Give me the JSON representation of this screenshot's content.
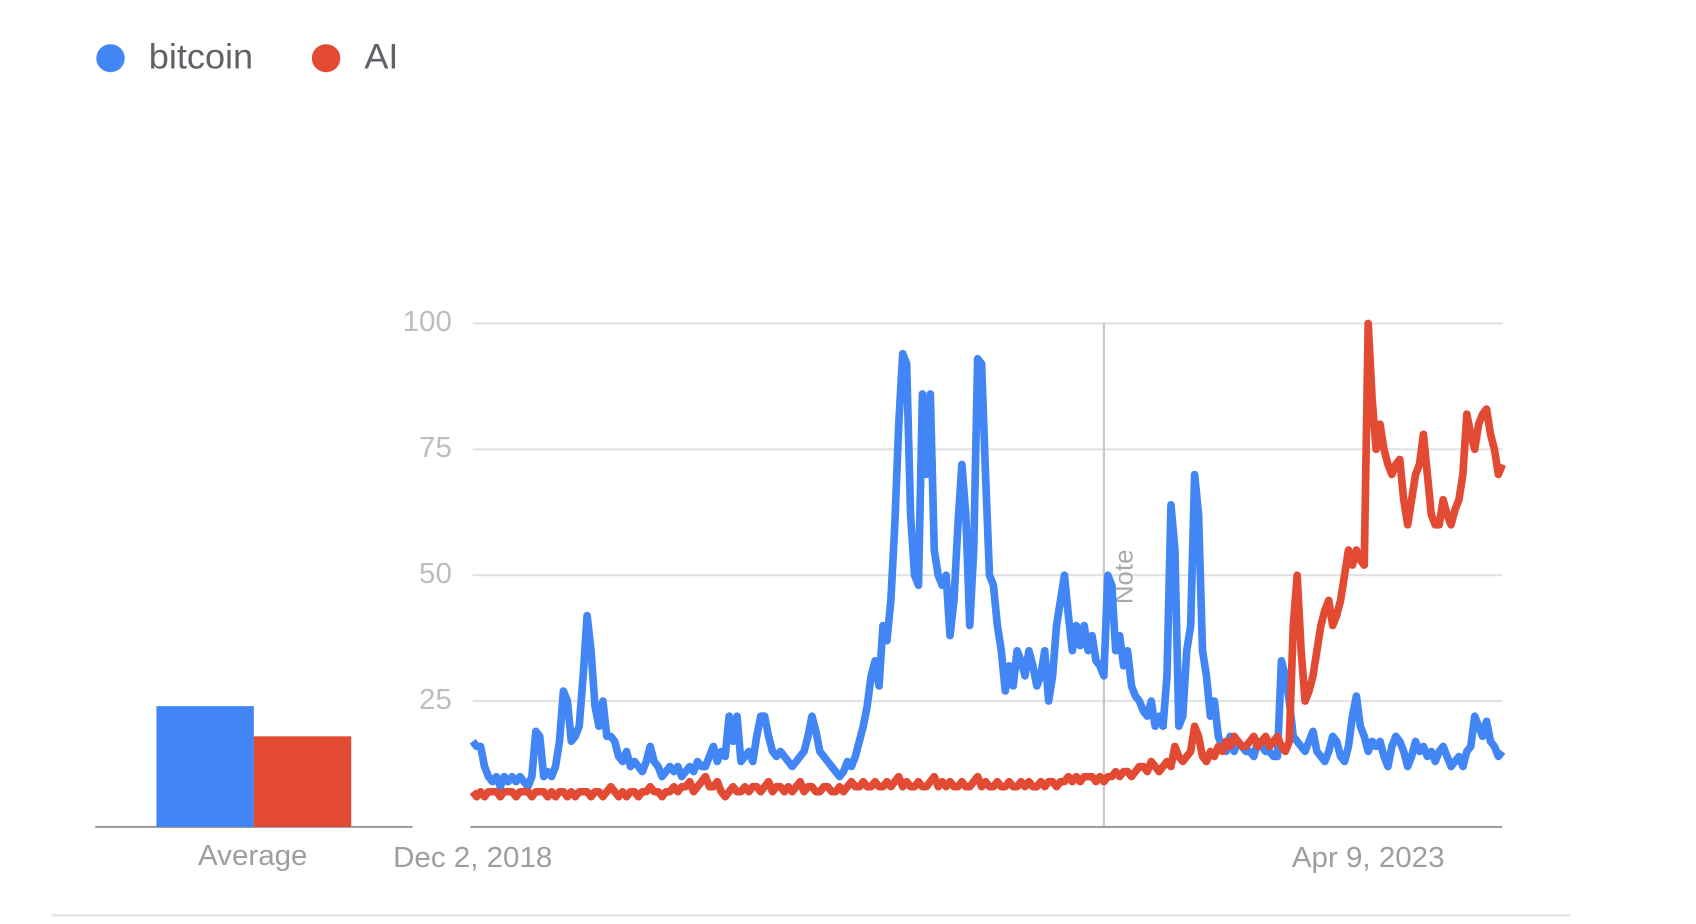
{
  "chart_data": {
    "type": "line",
    "average_label": "Average",
    "categories": [
      "Dec 2, 2018",
      null,
      null,
      null,
      null,
      null,
      null,
      null,
      null,
      null,
      null,
      null,
      null,
      null,
      null,
      null,
      null,
      null,
      null,
      null,
      null,
      null,
      null,
      null,
      null,
      null,
      null,
      null,
      null,
      null,
      null,
      null,
      null,
      null,
      null,
      null,
      null,
      null,
      null,
      null,
      null,
      null,
      null,
      null,
      null,
      null,
      null,
      null,
      null,
      null,
      null,
      null,
      null,
      null,
      null,
      null,
      null,
      null,
      null,
      null,
      null,
      null,
      null,
      null,
      null,
      null,
      null,
      null,
      null,
      null,
      null,
      null,
      null,
      null,
      null,
      null,
      null,
      null,
      null,
      null,
      null,
      null,
      null,
      null,
      null,
      null,
      null,
      null,
      null,
      null,
      null,
      null,
      null,
      null,
      null,
      null,
      null,
      null,
      null,
      null,
      null,
      null,
      null,
      null,
      null,
      null,
      null,
      null,
      null,
      null,
      null,
      null,
      null,
      null,
      null,
      null,
      null,
      null,
      null,
      null,
      null,
      null,
      null,
      null,
      null,
      null,
      null,
      null,
      null,
      null,
      null,
      null,
      null,
      null,
      null,
      null,
      null,
      null,
      null,
      null,
      null,
      null,
      null,
      null,
      null,
      null,
      null,
      null,
      null,
      null,
      null,
      null,
      null,
      null,
      null,
      null,
      null,
      null,
      null,
      null,
      null,
      null,
      null,
      null,
      null,
      null,
      null,
      null,
      null,
      null,
      null,
      null,
      null,
      null,
      null,
      null,
      null,
      null,
      null,
      null,
      null,
      null,
      null,
      null,
      null,
      null,
      null,
      null,
      null,
      null,
      null,
      null,
      null,
      null,
      null,
      null,
      null,
      null,
      null,
      null,
      null,
      null,
      null,
      null,
      null,
      null,
      null,
      null,
      null,
      null,
      null,
      null,
      null,
      null,
      null,
      null,
      null,
      null,
      null,
      null,
      null,
      null,
      null,
      null,
      null,
      null,
      null,
      "Apr 9, 2023",
      null,
      null,
      null,
      null,
      null,
      null,
      null,
      null,
      null,
      null,
      null,
      null,
      null,
      null,
      null,
      null,
      null,
      null,
      null,
      null,
      null,
      null,
      null,
      null,
      null,
      null,
      null,
      null,
      null,
      null,
      null,
      null,
      null,
      null
    ],
    "series": [
      {
        "name": "bitcoin",
        "color": "#4285f4",
        "average": 24,
        "values": [
          17,
          16,
          16,
          12,
          10,
          9,
          10,
          8,
          10,
          9,
          10,
          9,
          10,
          9,
          8,
          10,
          19,
          18,
          10,
          11,
          10,
          12,
          17,
          27,
          25,
          17,
          18,
          20,
          30,
          42,
          35,
          24,
          20,
          25,
          18,
          18,
          17,
          14,
          13,
          15,
          12,
          13,
          12,
          11,
          13,
          16,
          13,
          12,
          10,
          11,
          12,
          11,
          12,
          10,
          11,
          12,
          11,
          13,
          12,
          12,
          14,
          16,
          13,
          15,
          14,
          22,
          17,
          22,
          13,
          14,
          15,
          13,
          18,
          22,
          22,
          18,
          15,
          14,
          15,
          14,
          13,
          12,
          13,
          14,
          15,
          18,
          22,
          19,
          15,
          14,
          13,
          12,
          11,
          10,
          11,
          13,
          12,
          14,
          17,
          20,
          24,
          30,
          33,
          28,
          40,
          37,
          45,
          60,
          80,
          94,
          92,
          62,
          50,
          48,
          86,
          70,
          86,
          55,
          50,
          48,
          50,
          38,
          45,
          60,
          72,
          62,
          40,
          55,
          93,
          92,
          70,
          50,
          48,
          40,
          35,
          27,
          32,
          28,
          35,
          33,
          30,
          35,
          32,
          28,
          30,
          35,
          25,
          30,
          40,
          45,
          50,
          42,
          35,
          40,
          36,
          40,
          35,
          38,
          33,
          32,
          30,
          50,
          48,
          35,
          38,
          32,
          35,
          28,
          26,
          25,
          23,
          22,
          25,
          20,
          22,
          20,
          30,
          64,
          55,
          20,
          22,
          35,
          40,
          70,
          62,
          35,
          30,
          22,
          25,
          18,
          16,
          15,
          18,
          15,
          17,
          16,
          15,
          15,
          14,
          17,
          16,
          15,
          15,
          14,
          14,
          33,
          30,
          25,
          18,
          17,
          16,
          15,
          17,
          19,
          15,
          14,
          13,
          15,
          18,
          17,
          14,
          13,
          16,
          22,
          26,
          20,
          18,
          15,
          17,
          16,
          17,
          14,
          12,
          16,
          18,
          17,
          15,
          12,
          14,
          17,
          15,
          16,
          14,
          15,
          13,
          15,
          16,
          14,
          12,
          13,
          14,
          12,
          15,
          16,
          22,
          20,
          18,
          21,
          17,
          16,
          14,
          15
        ]
      },
      {
        "name": "AI",
        "color": "#e24a33",
        "average": 18,
        "values": [
          7,
          6,
          7,
          6,
          7,
          7,
          7,
          6,
          7,
          7,
          7,
          6,
          7,
          7,
          7,
          6,
          7,
          7,
          7,
          6,
          7,
          6,
          7,
          7,
          6,
          7,
          6,
          7,
          7,
          7,
          6,
          7,
          7,
          6,
          7,
          8,
          7,
          6,
          7,
          6,
          7,
          7,
          6,
          7,
          7,
          8,
          7,
          7,
          6,
          7,
          7,
          8,
          7,
          8,
          8,
          9,
          7,
          8,
          9,
          10,
          8,
          8,
          9,
          7,
          6,
          7,
          8,
          7,
          7,
          8,
          7,
          8,
          8,
          7,
          8,
          9,
          7,
          8,
          8,
          7,
          8,
          7,
          8,
          9,
          7,
          8,
          8,
          7,
          7,
          8,
          8,
          7,
          7,
          8,
          7,
          8,
          9,
          8,
          8,
          9,
          8,
          8,
          9,
          8,
          8,
          9,
          8,
          9,
          10,
          8,
          9,
          8,
          8,
          9,
          8,
          8,
          9,
          10,
          8,
          9,
          8,
          9,
          8,
          8,
          9,
          8,
          8,
          9,
          10,
          8,
          9,
          8,
          8,
          9,
          8,
          8,
          9,
          8,
          8,
          9,
          8,
          9,
          8,
          8,
          9,
          8,
          9,
          9,
          8,
          9,
          9,
          10,
          9,
          10,
          9,
          10,
          10,
          10,
          9,
          10,
          9,
          10,
          10,
          11,
          10,
          11,
          11,
          10,
          11,
          12,
          12,
          11,
          13,
          12,
          11,
          12,
          13,
          12,
          16,
          14,
          13,
          14,
          15,
          20,
          18,
          14,
          13,
          15,
          14,
          16,
          15,
          17,
          16,
          18,
          17,
          16,
          16,
          17,
          18,
          16,
          17,
          18,
          16,
          17,
          18,
          16,
          15,
          17,
          40,
          50,
          35,
          25,
          27,
          30,
          35,
          40,
          43,
          45,
          40,
          42,
          45,
          50,
          55,
          52,
          55,
          53,
          52,
          100,
          85,
          75,
          80,
          75,
          72,
          70,
          72,
          73,
          65,
          60,
          65,
          70,
          72,
          78,
          70,
          62,
          60,
          60,
          65,
          62,
          60,
          63,
          65,
          70,
          82,
          78,
          75,
          80,
          82,
          83,
          78,
          75,
          70,
          72
        ]
      }
    ],
    "annotations": [
      {
        "text": "Note",
        "x": 160
      }
    ],
    "ylim": [
      0,
      100
    ],
    "yticks": [
      25,
      50,
      75,
      100
    ],
    "grid": true
  }
}
